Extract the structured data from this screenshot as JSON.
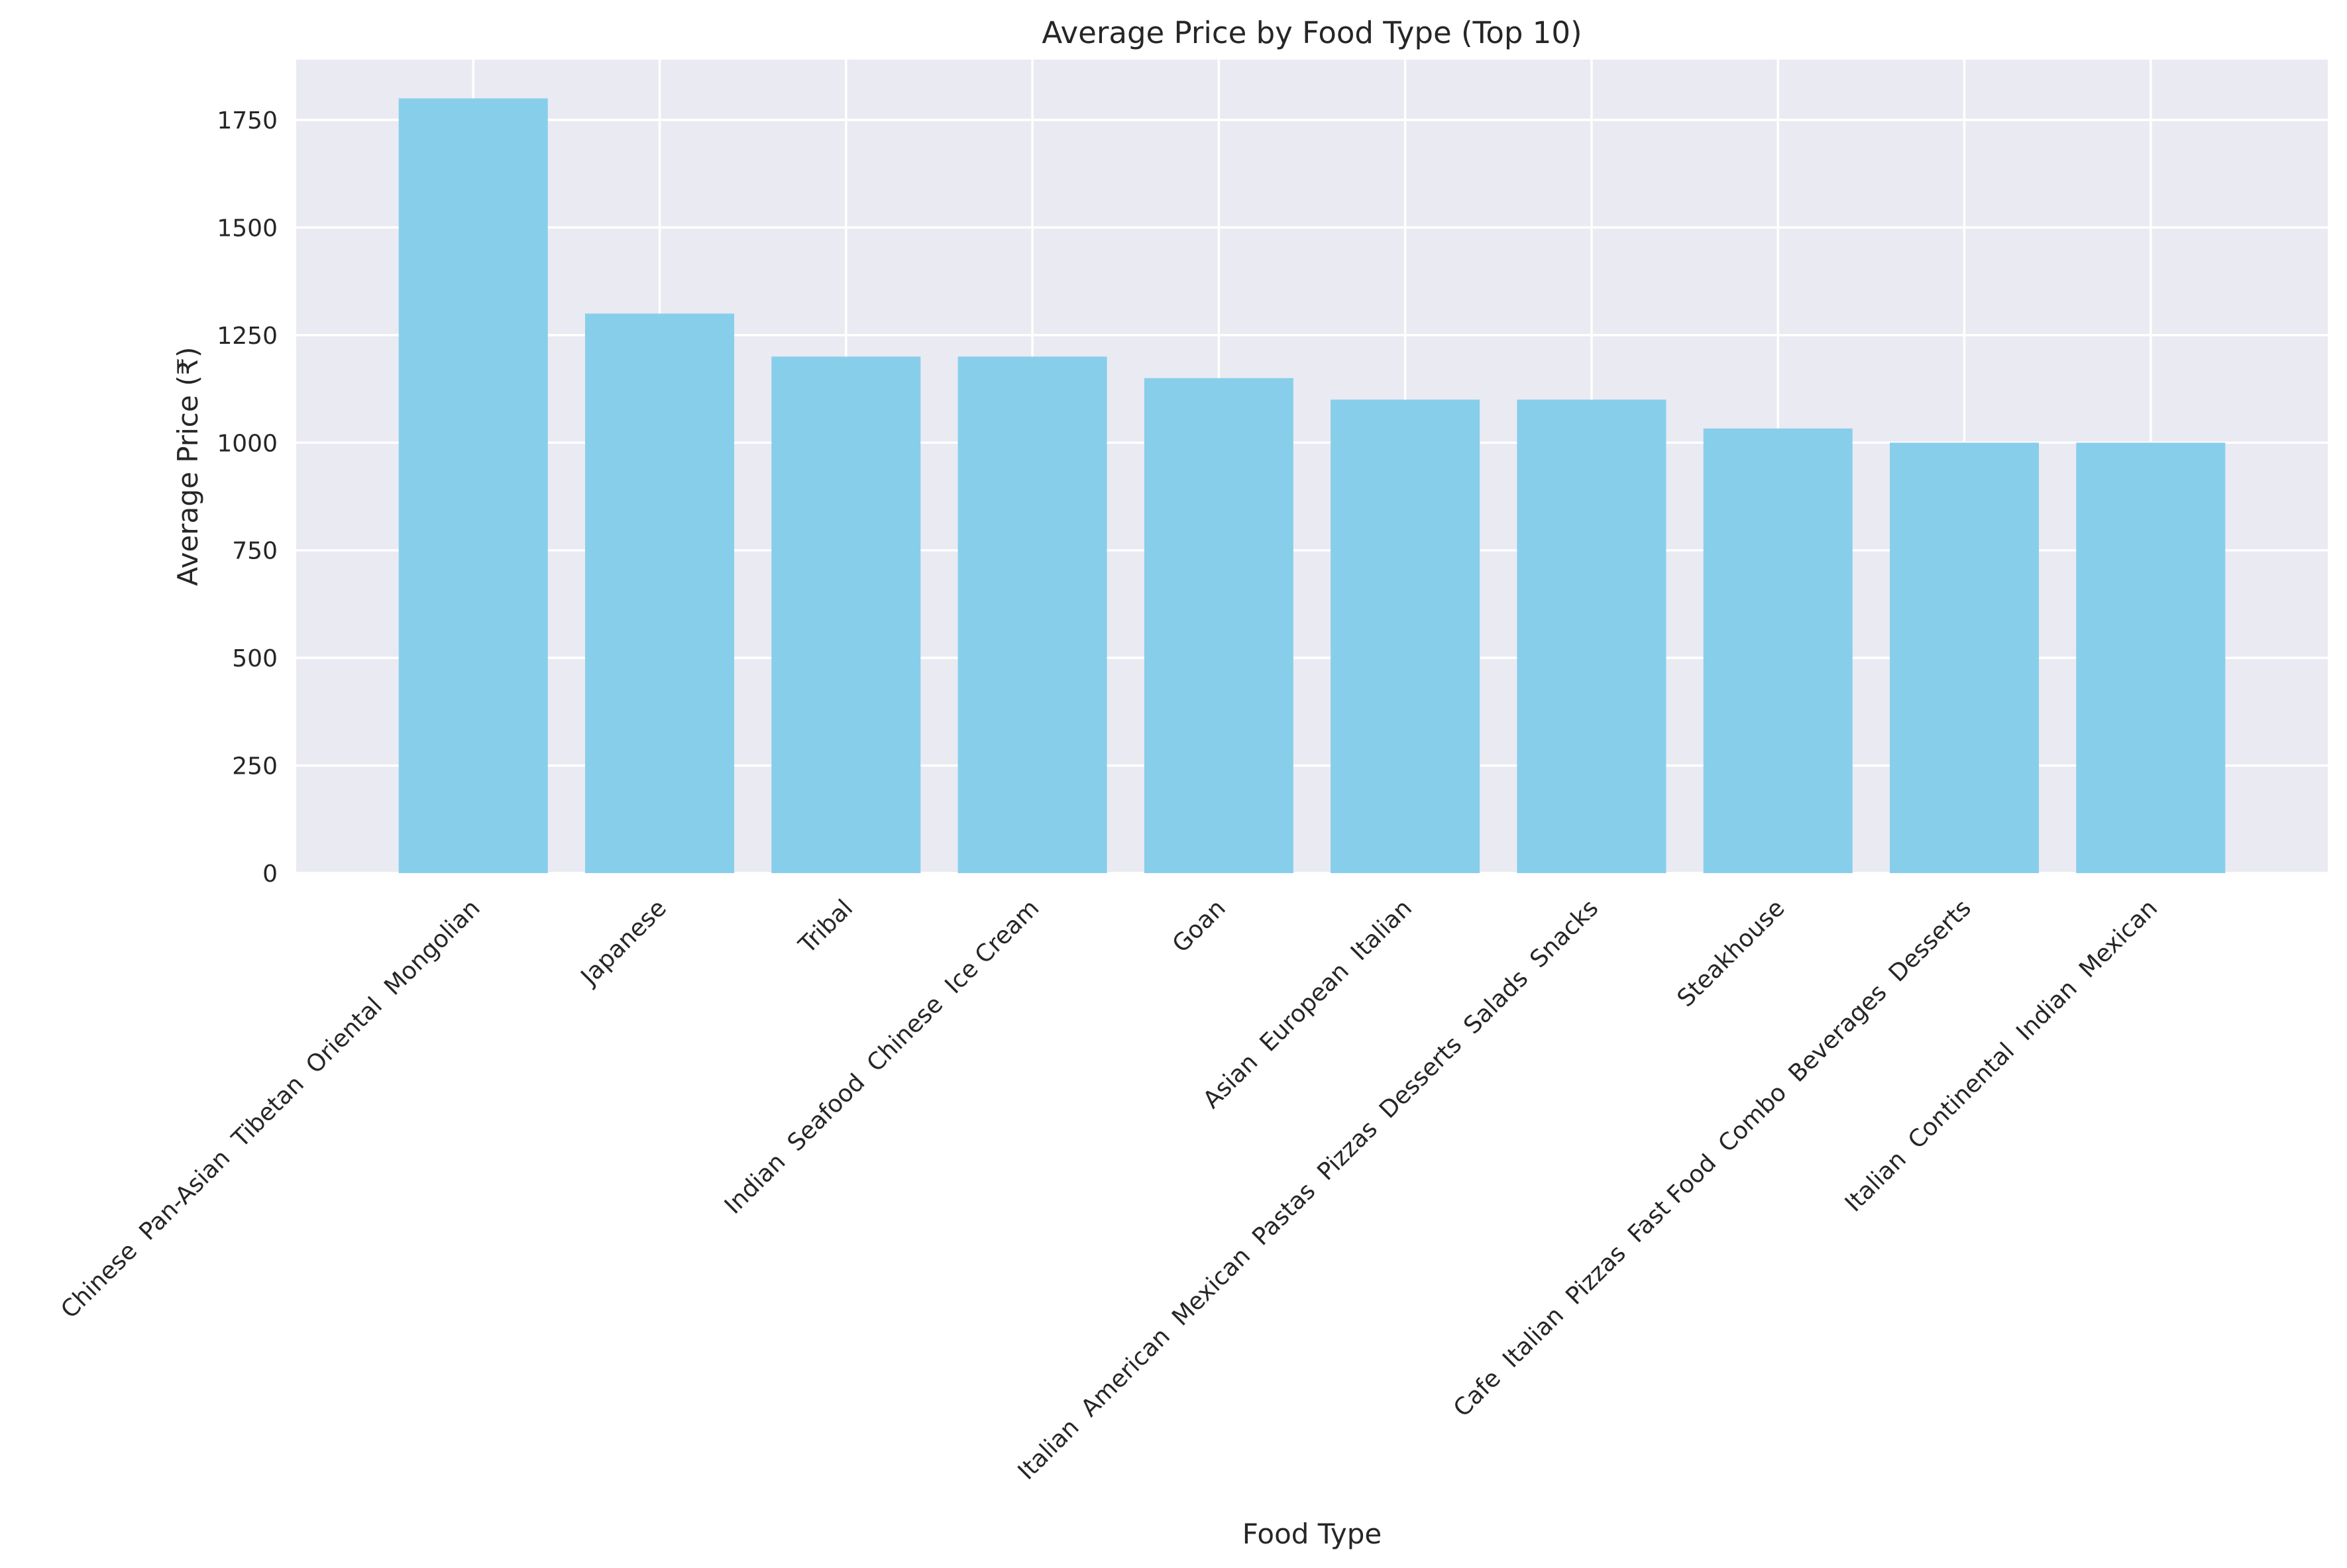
{
  "chart_data": {
    "type": "bar",
    "title": "Average Price by Food Type (Top 10)",
    "xlabel": "Food Type",
    "ylabel": "Average Price (₹)",
    "categories": [
      "Chinese  Pan-Asian  Tibetan  Oriental  Mongolian",
      "Japanese",
      "Tribal",
      "Indian  Seafood  Chinese  Ice Cream",
      "Goan",
      "Asian  European  Italian",
      "Italian  American  Mexican  Pastas  Pizzas  Desserts  Salads  Snacks",
      "Steakhouse",
      "Cafe  Italian  Pizzas  Fast Food  Combo  Beverages  Desserts",
      "Italian  Continental  Indian  Mexican"
    ],
    "values": [
      1800,
      1300,
      1200,
      1200,
      1150,
      1100,
      1100,
      1033,
      1000,
      1000
    ],
    "ylim": [
      0,
      1890
    ],
    "yticks": [
      0,
      250,
      500,
      750,
      1000,
      1250,
      1500,
      1750
    ],
    "grid": true,
    "bar_color": "#87CEEB",
    "plot_background": "#EAEAF2",
    "grid_color": "#FFFFFF"
  }
}
